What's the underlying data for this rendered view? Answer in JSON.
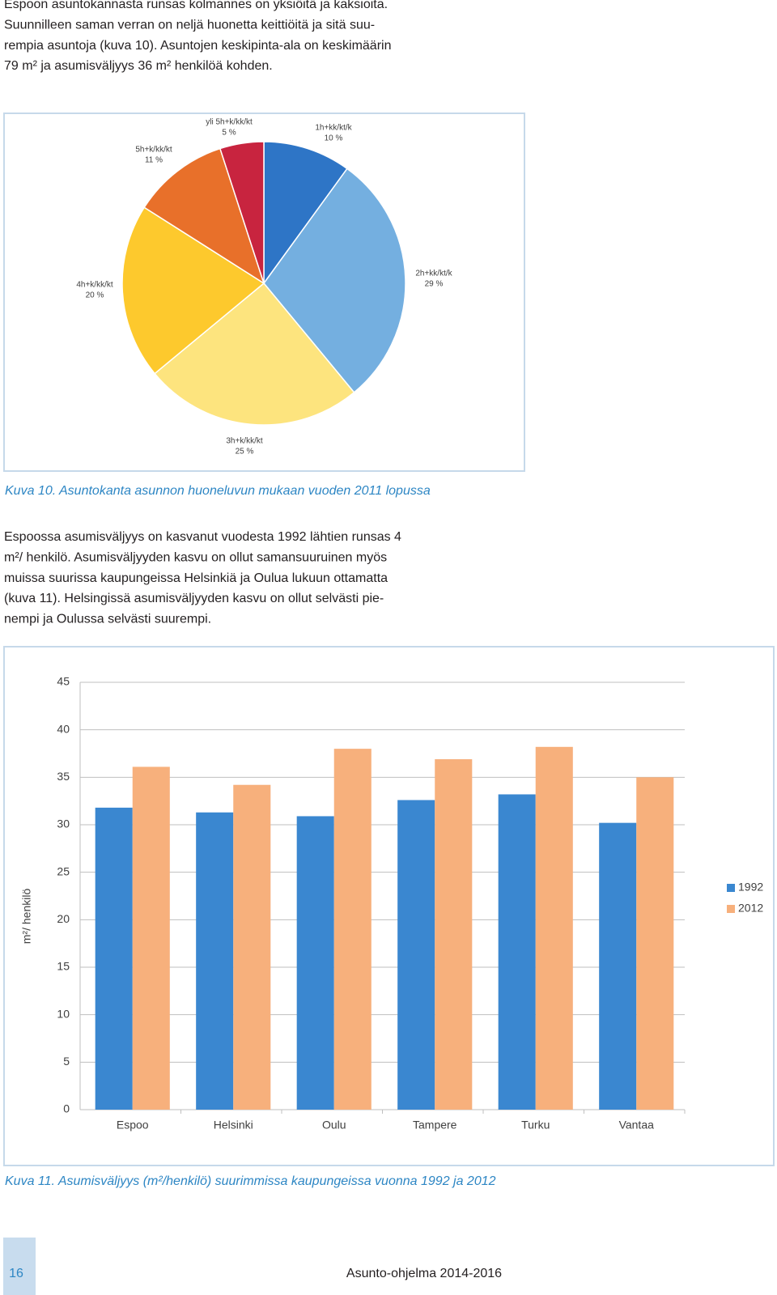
{
  "paragraphs": [
    [
      "Espoon asuntokannasta runsas kolmannes on yksiöitä ja kaksioita.",
      "Suunnilleen saman verran on neljä huonetta keittiöitä ja sitä suu-",
      "rempia asuntoja (kuva 10). Asuntojen keskipinta-ala on keskimäärin",
      "79 m² ja asumisväljyys 36 m² henkilöä kohden."
    ],
    [
      "Espoossa asumisväljyys on kasvanut vuodesta 1992 lähtien runsas 4",
      "m²/ henkilö. Asumisväljyyden kasvu on ollut samansuuruinen myös",
      "muissa suurissa kaupungeissa Helsinkiä ja Oulua lukuun ottamatta",
      "(kuva 11). Helsingissä asumisväljyyden kasvu on ollut selvästi pie-",
      "nempi ja Oulussa selvästi suurempi."
    ]
  ],
  "captions": [
    "Kuva 10. Asuntokanta asunnon huoneluvun mukaan vuoden 2011 lopussa",
    "Kuva 11. Asumisväljyys (m²/henkilö) suurimmissa kaupungeissa vuonna 1992 ja 2012"
  ],
  "footer": {
    "page": "16",
    "title": "Asunto-ohjelma 2014-2016"
  },
  "chart_data": [
    {
      "type": "pie",
      "categories": [
        "1h+kk/kt/k",
        "2h+kk/kt/k",
        "3h+k/kk/kt",
        "4h+k/kk/kt",
        "5h+k/kk/kt",
        "yli 5h+k/kk/kt"
      ],
      "values": [
        10,
        29,
        25,
        20,
        11,
        5
      ],
      "value_labels": [
        "10 %",
        "29 %",
        "25 %",
        "20 %",
        "11 %",
        "5 %"
      ],
      "colors": [
        "#2e75c6",
        "#74afe0",
        "#fde47e",
        "#fdc92d",
        "#e8702a",
        "#c8243f"
      ]
    },
    {
      "type": "bar",
      "y_label": "m²/ henkilö",
      "categories": [
        "Espoo",
        "Helsinki",
        "Oulu",
        "Tampere",
        "Turku",
        "Vantaa"
      ],
      "series": [
        {
          "name": "1992",
          "color": "#3a87d0",
          "values": [
            31.8,
            31.3,
            30.9,
            32.6,
            33.2,
            30.2
          ]
        },
        {
          "name": "2012",
          "color": "#f7b07c",
          "values": [
            36.1,
            34.2,
            38.0,
            36.9,
            38.2,
            35.0
          ]
        }
      ],
      "ylim": [
        0,
        45
      ],
      "yticks": [
        0,
        5,
        10,
        15,
        20,
        25,
        30,
        35,
        40,
        45
      ],
      "grid": true,
      "legend": "right"
    }
  ]
}
